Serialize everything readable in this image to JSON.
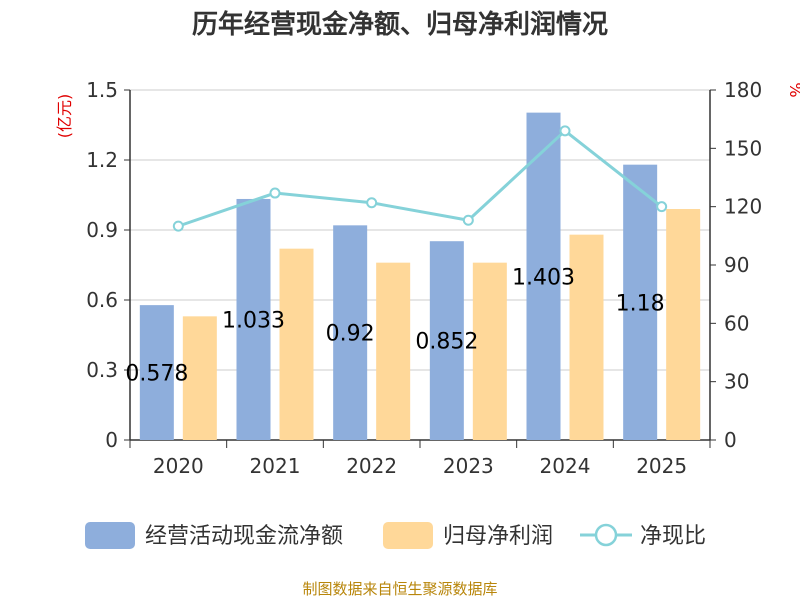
{
  "title": "历年经营现金净额、归母净利润情况",
  "source": "制图数据来自恒生聚源数据库",
  "chart_data": {
    "type": "bar",
    "categories": [
      "2020",
      "2021",
      "2022",
      "2023",
      "2024",
      "2025"
    ],
    "series": [
      {
        "name": "经营活动现金流净额",
        "type": "bar",
        "axis": "left",
        "color": "#8eaedc",
        "values": [
          0.578,
          1.033,
          0.92,
          0.852,
          1.403,
          1.18
        ],
        "labels": [
          "0.578",
          "1.033",
          "0.92",
          "0.852",
          "1.403",
          "1.18"
        ]
      },
      {
        "name": "归母净利润",
        "type": "bar",
        "axis": "left",
        "color": "#ffd899",
        "values": [
          0.53,
          0.82,
          0.76,
          0.76,
          0.88,
          0.99
        ]
      },
      {
        "name": "净现比",
        "type": "line",
        "axis": "right",
        "color": "#85d2d9",
        "values": [
          110,
          127,
          122,
          113,
          159,
          120
        ]
      }
    ],
    "left_axis": {
      "label": "(亿元)",
      "min": 0,
      "max": 1.5,
      "ticks": [
        "0",
        "0.3",
        "0.6",
        "0.9",
        "1.2",
        "1.5"
      ]
    },
    "right_axis": {
      "label": "%",
      "min": 0,
      "max": 180,
      "ticks": [
        "0",
        "30",
        "60",
        "90",
        "120",
        "150",
        "180"
      ]
    },
    "legend": [
      "经营活动现金流净额",
      "归母净利润",
      "净现比"
    ]
  }
}
